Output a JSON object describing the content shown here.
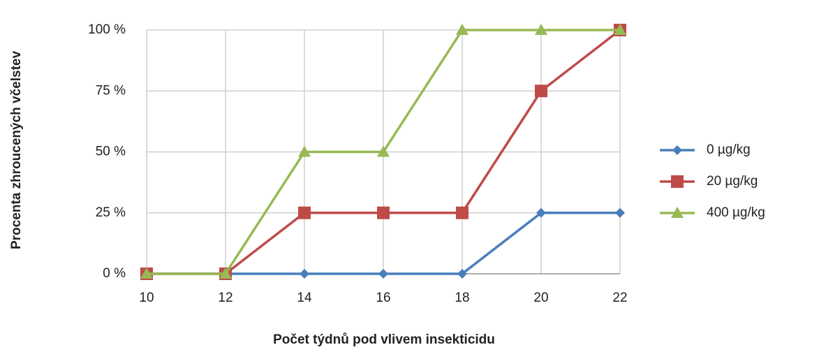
{
  "chart_data": {
    "type": "line",
    "x_label": "Počet týdnů pod vlivem insekticidu",
    "y_label": "Procenta zhroucených včelstev",
    "x": [
      10,
      12,
      14,
      16,
      18,
      20,
      22
    ],
    "series": [
      {
        "name": "0 µg/kg",
        "color": "#4a7ebb",
        "marker": "diamond",
        "values": [
          0,
          0,
          0,
          0,
          0,
          25,
          25
        ]
      },
      {
        "name": "20 µg/kg",
        "color": "#be4b48",
        "marker": "square",
        "values": [
          0,
          0,
          25,
          25,
          25,
          75,
          100
        ]
      },
      {
        "name": "400 µg/kg",
        "color": "#98b954",
        "marker": "triangle",
        "values": [
          0,
          0,
          50,
          50,
          100,
          100,
          100
        ]
      }
    ],
    "xlim": [
      10,
      22
    ],
    "xticks": [
      10,
      12,
      14,
      16,
      18,
      20,
      22
    ],
    "ylim": [
      0,
      100
    ],
    "yticks": [
      {
        "value": 0,
        "label": "0 %"
      },
      {
        "value": 25,
        "label": "25 %"
      },
      {
        "value": 50,
        "label": "50 %"
      },
      {
        "value": 75,
        "label": "75 %"
      },
      {
        "value": 100,
        "label": "100 %"
      }
    ],
    "grid": true,
    "legend": "right"
  }
}
